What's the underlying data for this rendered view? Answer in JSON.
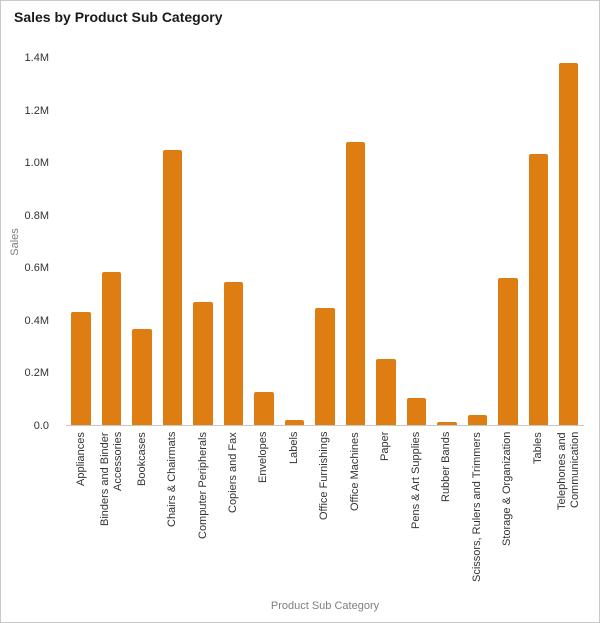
{
  "colors": {
    "bar": "#de7d12",
    "border": "#c9c9c9",
    "axis_line": "#c8c8c8",
    "tick_text": "#333333",
    "axis_title_text": "#7f7f7f",
    "title_text": "#1a1a1a"
  },
  "chart_data": {
    "type": "bar",
    "title": "Sales by Product Sub Category",
    "xlabel": "Product Sub Category",
    "ylabel": "Sales",
    "ylim": [
      0,
      1400000
    ],
    "grid": false,
    "legend": "none",
    "yticks": [
      {
        "value": 0,
        "label": "0.0"
      },
      {
        "value": 200000,
        "label": "0.2M"
      },
      {
        "value": 400000,
        "label": "0.4M"
      },
      {
        "value": 600000,
        "label": "0.6M"
      },
      {
        "value": 800000,
        "label": "0.8M"
      },
      {
        "value": 1000000,
        "label": "1.0M"
      },
      {
        "value": 1200000,
        "label": "1.2M"
      },
      {
        "value": 1400000,
        "label": "1.4M"
      }
    ],
    "categories": [
      "Appliances",
      "Binders and Binder\nAccessories",
      "Bookcases",
      "Chairs & Chairmats",
      "Computer Peripherals",
      "Copiers and Fax",
      "Envelopes",
      "Labels",
      "Office Furnishings",
      "Office Machines",
      "Paper",
      "Pens & Art Supplies",
      "Rubber Bands",
      "Scissors, Rulers and Trimmers",
      "Storage & Organization",
      "Tables",
      "Telephones and\nCommunication"
    ],
    "values": [
      430000,
      585000,
      365000,
      1050000,
      470000,
      545000,
      125000,
      20000,
      445000,
      1080000,
      250000,
      103000,
      11000,
      38000,
      560000,
      1035000,
      1380000
    ]
  }
}
